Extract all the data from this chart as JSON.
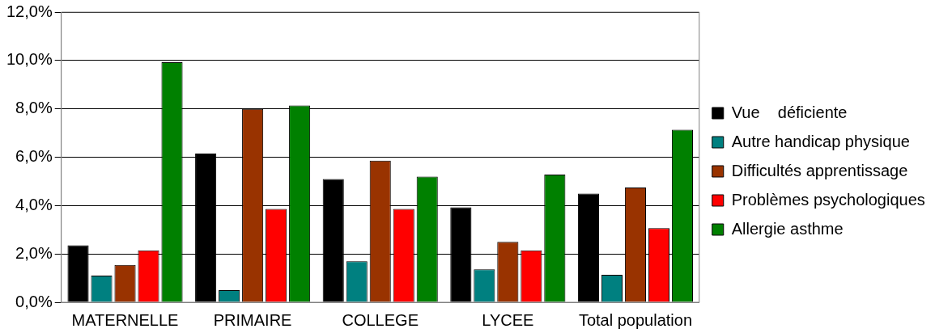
{
  "chart_data": {
    "type": "bar",
    "categories": [
      "MATERNELLE",
      "PRIMAIRE",
      "COLLEGE",
      "LYCEE",
      "Total population"
    ],
    "series": [
      {
        "name": "Vue    déficiente",
        "color": "#000000",
        "values": [
          2.36,
          6.15,
          5.1,
          3.93,
          4.5
        ]
      },
      {
        "name": "Autre handicap physique",
        "color": "#008080",
        "values": [
          1.1,
          0.5,
          1.7,
          1.36,
          1.14
        ]
      },
      {
        "name": "Difficultés apprentissage",
        "color": "#993300",
        "values": [
          1.55,
          8.0,
          5.86,
          2.5,
          4.75
        ]
      },
      {
        "name": "Problèmes psychologiques",
        "color": "#ff0000",
        "values": [
          2.15,
          3.86,
          3.86,
          2.15,
          3.07
        ]
      },
      {
        "name": "Allergie asthme",
        "color": "#008000",
        "values": [
          9.93,
          8.14,
          5.2,
          5.28,
          7.14
        ]
      }
    ],
    "ylim": [
      0,
      12
    ],
    "yticks": [
      {
        "value": 0,
        "label": "0,0%"
      },
      {
        "value": 2,
        "label": "2,0%"
      },
      {
        "value": 4,
        "label": "4,0%"
      },
      {
        "value": 6,
        "label": "6,0%"
      },
      {
        "value": 8,
        "label": "8,0%"
      },
      {
        "value": 10,
        "label": "10,0%"
      },
      {
        "value": 12,
        "label": "12,0%"
      }
    ],
    "grid": "y",
    "legend": "right"
  }
}
